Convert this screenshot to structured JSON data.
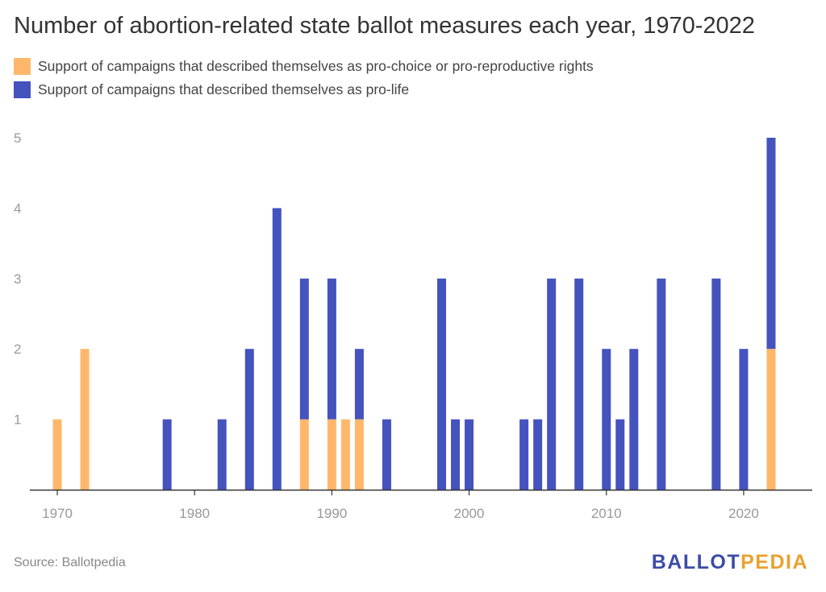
{
  "title": "Number of abortion-related state ballot measures each year, 1970-2022",
  "source": "Source: Ballotpedia",
  "logo": {
    "part1": "BALLOT",
    "part2": "PEDIA"
  },
  "colors": {
    "pro_choice": "#ffb86b",
    "pro_life": "#4453be",
    "axis": "#333333",
    "tick_label": "#999999"
  },
  "chart_data": {
    "type": "bar",
    "stacked": true,
    "title": "Number of abortion-related state ballot measures each year, 1970-2022",
    "xlabel": "",
    "ylabel": "",
    "xlim": [
      1968,
      2025
    ],
    "ylim": [
      0,
      5
    ],
    "x_ticks": [
      1970,
      1980,
      1990,
      2000,
      2010,
      2020
    ],
    "y_ticks": [
      1,
      2,
      3,
      4,
      5
    ],
    "grid": false,
    "legend_position": "top-left",
    "series": [
      {
        "name": "Support of campaigns that described themselves as pro-choice or pro-reproductive rights",
        "color": "#ffb86b",
        "points": [
          {
            "x": 1970,
            "y": 1
          },
          {
            "x": 1972,
            "y": 2
          },
          {
            "x": 1988,
            "y": 1
          },
          {
            "x": 1990,
            "y": 1
          },
          {
            "x": 1991,
            "y": 1
          },
          {
            "x": 1992,
            "y": 1
          },
          {
            "x": 2022,
            "y": 2
          }
        ]
      },
      {
        "name": "Support of campaigns that described themselves as pro-life",
        "color": "#4453be",
        "points": [
          {
            "x": 1978,
            "y": 1
          },
          {
            "x": 1982,
            "y": 1
          },
          {
            "x": 1984,
            "y": 2
          },
          {
            "x": 1986,
            "y": 4
          },
          {
            "x": 1988,
            "y": 2
          },
          {
            "x": 1990,
            "y": 2
          },
          {
            "x": 1992,
            "y": 1
          },
          {
            "x": 1994,
            "y": 1
          },
          {
            "x": 1998,
            "y": 3
          },
          {
            "x": 1999,
            "y": 1
          },
          {
            "x": 2000,
            "y": 1
          },
          {
            "x": 2004,
            "y": 1
          },
          {
            "x": 2005,
            "y": 1
          },
          {
            "x": 2006,
            "y": 3
          },
          {
            "x": 2008,
            "y": 3
          },
          {
            "x": 2010,
            "y": 2
          },
          {
            "x": 2011,
            "y": 1
          },
          {
            "x": 2012,
            "y": 2
          },
          {
            "x": 2014,
            "y": 3
          },
          {
            "x": 2018,
            "y": 3
          },
          {
            "x": 2020,
            "y": 2
          },
          {
            "x": 2022,
            "y": 3
          }
        ]
      }
    ]
  }
}
